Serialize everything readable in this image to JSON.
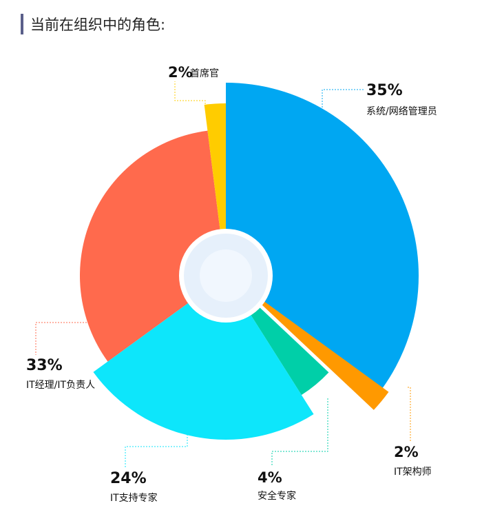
{
  "header": {
    "title": "当前在组织中的角色:"
  },
  "chart_data": {
    "type": "pie",
    "variant": "rose",
    "slices": [
      {
        "category": "系统/网络管理员",
        "value": 35,
        "label": "35%",
        "color": "#00a7f2"
      },
      {
        "category": "IT架构师",
        "value": 2,
        "label": "2%",
        "color": "#ff9900"
      },
      {
        "category": "安全专家",
        "value": 4,
        "label": "4%",
        "color": "#00cfa8"
      },
      {
        "category": "IT支持专家",
        "value": 24,
        "label": "24%",
        "color": "#0de6fb"
      },
      {
        "category": "IT经理/IT负责人",
        "value": 33,
        "label": "33%",
        "color": "#ff6a4d"
      },
      {
        "category": "首席官",
        "value": 2,
        "label": "2%",
        "color": "#ffcc00"
      }
    ]
  }
}
